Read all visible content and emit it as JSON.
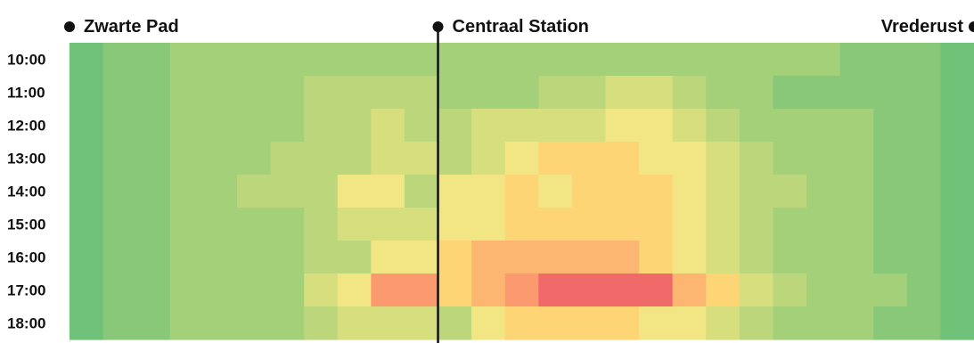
{
  "chart_data": {
    "type": "heatmap",
    "stops": [
      {
        "name": "Zwarte Pad",
        "column": 0
      },
      {
        "name": "Centraal Station",
        "column": 11
      },
      {
        "name": "Vrederust",
        "column": 27
      }
    ],
    "rows": [
      "10:00",
      "11:00",
      "12:00",
      "13:00",
      "14:00",
      "15:00",
      "16:00",
      "17:00",
      "18:00"
    ],
    "column_count": 27,
    "values": [
      [
        1,
        2,
        2,
        3,
        3,
        3,
        3,
        3,
        3,
        3,
        3,
        3,
        3,
        3,
        3,
        3,
        3,
        3,
        3,
        3,
        3,
        3,
        3,
        2,
        2,
        2,
        1
      ],
      [
        1,
        2,
        2,
        3,
        3,
        3,
        3,
        4,
        4,
        4,
        4,
        3,
        3,
        3,
        4,
        4,
        5,
        5,
        4,
        3,
        3,
        2,
        2,
        2,
        2,
        2,
        1
      ],
      [
        1,
        2,
        2,
        3,
        3,
        3,
        3,
        4,
        4,
        5,
        4,
        4,
        5,
        5,
        5,
        5,
        6,
        6,
        5,
        4,
        3,
        3,
        3,
        3,
        2,
        2,
        1
      ],
      [
        1,
        2,
        2,
        3,
        3,
        3,
        4,
        4,
        4,
        5,
        5,
        4,
        5,
        6,
        7,
        7,
        7,
        6,
        6,
        5,
        4,
        3,
        3,
        3,
        2,
        2,
        1
      ],
      [
        1,
        2,
        2,
        3,
        3,
        4,
        4,
        4,
        6,
        6,
        4,
        6,
        6,
        7,
        6,
        7,
        7,
        7,
        6,
        5,
        4,
        4,
        3,
        3,
        2,
        2,
        1
      ],
      [
        1,
        2,
        2,
        3,
        3,
        3,
        3,
        4,
        5,
        5,
        5,
        6,
        6,
        7,
        7,
        7,
        7,
        7,
        6,
        5,
        4,
        3,
        3,
        3,
        2,
        2,
        1
      ],
      [
        1,
        2,
        2,
        3,
        3,
        3,
        3,
        4,
        4,
        6,
        6,
        7,
        8,
        8,
        8,
        8,
        8,
        7,
        6,
        5,
        4,
        3,
        3,
        3,
        2,
        2,
        1
      ],
      [
        1,
        2,
        2,
        3,
        3,
        3,
        3,
        5,
        6,
        9,
        9,
        7,
        8,
        9,
        10,
        10,
        10,
        10,
        8,
        7,
        5,
        4,
        3,
        3,
        3,
        2,
        1
      ],
      [
        1,
        2,
        2,
        3,
        3,
        3,
        3,
        4,
        5,
        5,
        5,
        4,
        6,
        7,
        7,
        7,
        7,
        6,
        6,
        5,
        4,
        3,
        3,
        3,
        2,
        2,
        1
      ]
    ],
    "color_scale": [
      "#5dbd7a",
      "#6fc278",
      "#88c878",
      "#a4d07a",
      "#bcd67c",
      "#d6de7e",
      "#f2e684",
      "#fdd574",
      "#fcb672",
      "#fa9a6e",
      "#f06a6a"
    ],
    "time_marker_column": 11
  }
}
